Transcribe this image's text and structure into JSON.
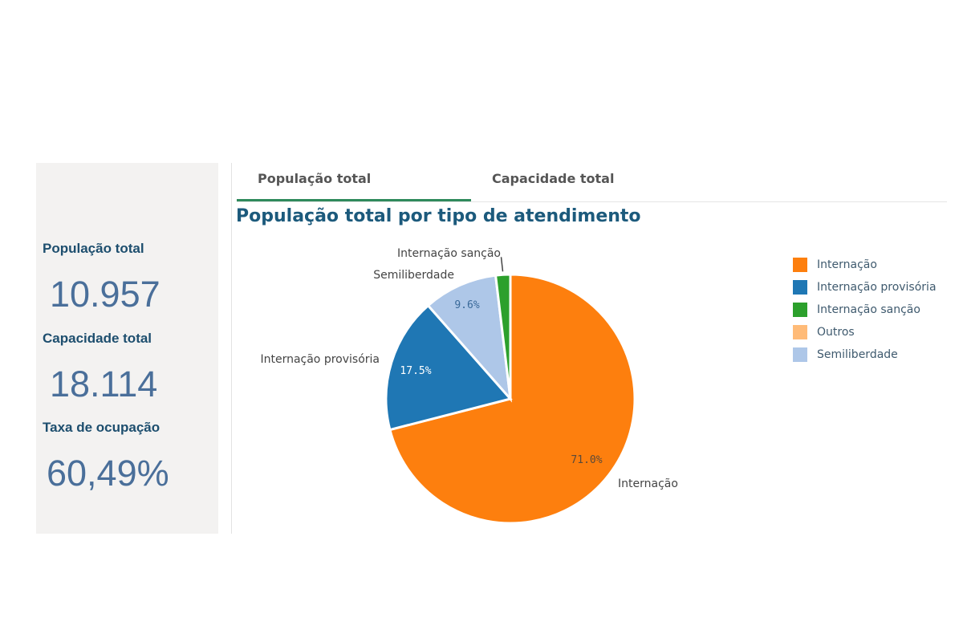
{
  "kpis": [
    {
      "label": "População total",
      "value": "10.957"
    },
    {
      "label": "Capacidade total",
      "value": "18.114"
    },
    {
      "label": "Taxa de ocupação",
      "value": "60,49%"
    }
  ],
  "tabs": [
    {
      "label": "População total",
      "active": true
    },
    {
      "label": "Capacidade total",
      "active": false
    }
  ],
  "colors": {
    "Internação": "#fd7f0e",
    "Internação provisória": "#1f77b4",
    "Internação sanção": "#2ca02c",
    "Outros": "#ffbb78",
    "Semiliberdade": "#aec7e8"
  },
  "chart_data": {
    "type": "pie",
    "title": "População total por tipo de atendimento",
    "slices": [
      {
        "label": "Internação",
        "value": 71.0,
        "data_label": "71.0%",
        "outside_label": "Internação"
      },
      {
        "label": "Internação provisória",
        "value": 17.5,
        "data_label": "17.5%",
        "outside_label": "Internação provisória"
      },
      {
        "label": "Semiliberdade",
        "value": 9.6,
        "data_label": "9.6%",
        "outside_label": "Semiliberdade"
      },
      {
        "label": "Internação sanção",
        "value": 1.9,
        "data_label": "",
        "outside_label": "Internação sanção"
      }
    ],
    "legend": [
      "Internação",
      "Internação provisória",
      "Internação sanção",
      "Outros",
      "Semiliberdade"
    ],
    "legend_position": "right",
    "start_angle": "12 o'clock",
    "direction": "clockwise"
  }
}
